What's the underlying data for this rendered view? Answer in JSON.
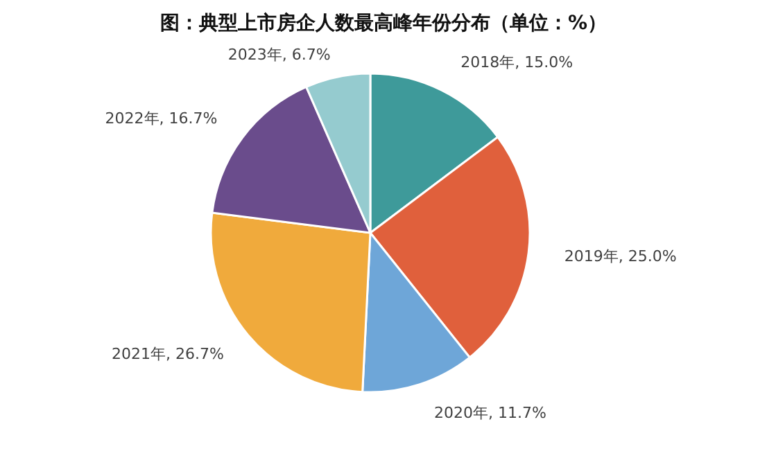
{
  "chart_data": {
    "type": "pie",
    "title": "图：典型上市房企人数最高峰年份分布（单位：%）",
    "categories": [
      "2018年",
      "2019年",
      "2020年",
      "2021年",
      "2022年",
      "2023年"
    ],
    "values": [
      15.0,
      25.0,
      11.7,
      26.7,
      16.7,
      6.7
    ],
    "colors": [
      "#3e9a9a",
      "#e0603c",
      "#6ea6d8",
      "#f0aa3c",
      "#6a4c8c",
      "#95cbcf"
    ],
    "value_labels": [
      ", 15.0%",
      ", 25.0%",
      ", 11.7%",
      ", 26.7%",
      ", 16.7%",
      ", 6.7%"
    ],
    "legend": false
  }
}
